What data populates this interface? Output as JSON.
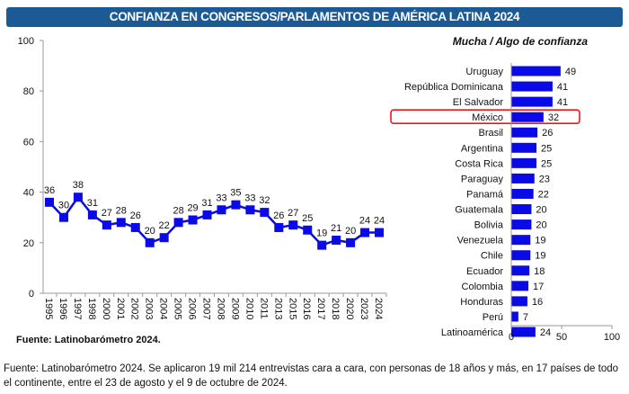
{
  "title": "CONFIANZA EN CONGRESOS/PARLAMENTOS DE AMÉRICA LATINA 2024",
  "chart_data": [
    {
      "type": "line",
      "categories": [
        "1995",
        "1996",
        "1997",
        "1998",
        "2000",
        "2001",
        "2002",
        "2003",
        "2004",
        "2005",
        "2006",
        "2007",
        "2008",
        "2009",
        "2010",
        "2011",
        "2013",
        "2015",
        "2016",
        "2017",
        "2018",
        "2020",
        "2023",
        "2024"
      ],
      "values": [
        36,
        30,
        38,
        31,
        27,
        28,
        26,
        20,
        22,
        28,
        29,
        31,
        33,
        35,
        33,
        32,
        26,
        27,
        25,
        19,
        21,
        20,
        24,
        24
      ],
      "ylim": [
        0,
        100
      ],
      "yticks": [
        0,
        20,
        40,
        60,
        80,
        100
      ],
      "color": "#0a0ae6",
      "marker": "square",
      "source": "Fuente: Latinobarómetro 2024."
    },
    {
      "type": "bar",
      "orientation": "horizontal",
      "title": "Mucha / Algo de confianza",
      "categories": [
        "Uruguay",
        "República Dominicana",
        "El Salvador",
        "México",
        "Brasil",
        "Argentina",
        "Costa Rica",
        "Paraguay",
        "Panamá",
        "Guatemala",
        "Bolivia",
        "Venezuela",
        "Chile",
        "Ecuador",
        "Colombia",
        "Honduras",
        "Perú",
        "Latinoamérica"
      ],
      "values": [
        49,
        41,
        41,
        32,
        26,
        25,
        25,
        23,
        22,
        20,
        20,
        19,
        19,
        18,
        17,
        16,
        7,
        24
      ],
      "xlim": [
        0,
        100
      ],
      "xticks": [
        0,
        50,
        100
      ],
      "color": "#0a0ae6",
      "highlight": "México",
      "highlight_color": "#e8191b"
    }
  ],
  "footer": "Fuente: Latinobarómetro 2024. Se aplicaron 19 mil 214 entrevistas cara a cara, con personas de 18 años y más, en 17 países de todo el continente, entre el 23 de agosto y el 9 de octubre de 2024."
}
